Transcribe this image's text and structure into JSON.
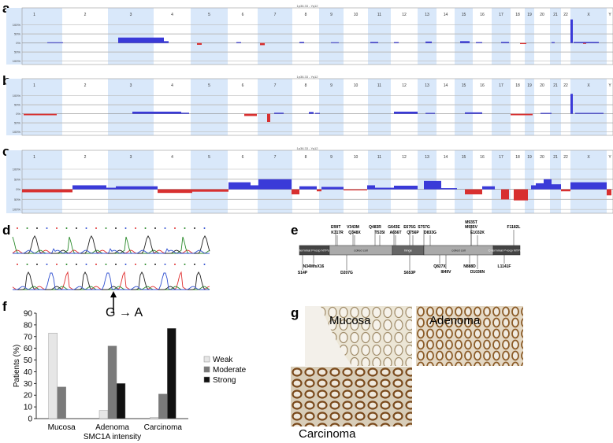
{
  "panels": {
    "a": "a",
    "b": "b",
    "c": "c",
    "d": "d",
    "e": "e",
    "f": "f",
    "g": "g"
  },
  "cnv": {
    "header": "1p36.33 - Yq12",
    "chromosomes": [
      "1",
      "2",
      "3",
      "4",
      "5",
      "6",
      "7",
      "8",
      "9",
      "10",
      "11",
      "12",
      "13",
      "14",
      "15",
      "16",
      "17",
      "18",
      "19",
      "20",
      "21",
      "22",
      "X",
      "Y"
    ],
    "ytick_labels": [
      "100%",
      "50%",
      "0%",
      "50%",
      "100%"
    ],
    "gain_color": "#3a3ad8",
    "loss_color": "#d83030",
    "shade_color": "#d9e8fa"
  },
  "chromatogram": {
    "mutation_label": "G",
    "mutation_target": "A"
  },
  "protein": {
    "domains": [
      "N-terminal P-loop NTPase",
      "coiled coil",
      "hinge",
      "coiled coil",
      "C-terminal P-loop NTPase"
    ],
    "mutations_top": [
      "I299T",
      "K317R",
      "V343M",
      "Q348X",
      "Q483R",
      "T535I",
      "G643E",
      "A656T",
      "E676G",
      "Q756P",
      "S757G",
      "D833G",
      "M935T",
      "M935V",
      "E1032K",
      "F1182L"
    ],
    "mutations_bottom": [
      "S14P",
      "N34MfsX16",
      "D207G",
      "S653P",
      "Q827X",
      "I849V",
      "N888D",
      "D1036N",
      "L1141F"
    ]
  },
  "chart_data": {
    "type": "bar",
    "categories": [
      "Mucosa",
      "Adenoma",
      "Carcinoma"
    ],
    "series": [
      {
        "name": "Weak",
        "values": [
          73,
          7,
          1
        ],
        "color": "#e6e6e6"
      },
      {
        "name": "Moderate",
        "values": [
          27,
          62,
          21
        ],
        "color": "#7a7a7a"
      },
      {
        "name": "Strong",
        "values": [
          0,
          30,
          77
        ],
        "color": "#111111"
      }
    ],
    "xlabel": "SMC1A intensity",
    "ylabel": "Patients (%)",
    "ylim": [
      0,
      90
    ],
    "yticks": [
      0,
      10,
      20,
      30,
      40,
      50,
      60,
      70,
      80,
      90
    ],
    "grid": false,
    "legend": "right"
  },
  "micrographs": {
    "mucosa": "Mucosa",
    "adenoma": "Adenoma",
    "carcinoma": "Carcinoma"
  }
}
